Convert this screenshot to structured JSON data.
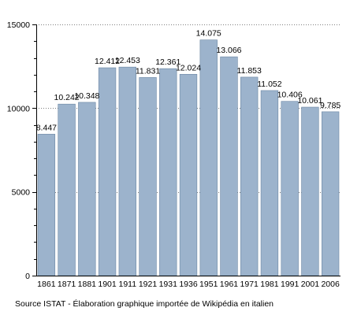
{
  "chart_data": {
    "type": "bar",
    "categories": [
      "1861",
      "1871",
      "1881",
      "1901",
      "1911",
      "1921",
      "1931",
      "1936",
      "1951",
      "1961",
      "1971",
      "1981",
      "1991",
      "2001",
      "2006"
    ],
    "values": [
      8447,
      10242,
      10348,
      12412,
      12453,
      11831,
      12361,
      12024,
      14075,
      13066,
      11853,
      11052,
      10406,
      10061,
      9785
    ],
    "data_labels": [
      "8.447",
      "10.242",
      "10.348",
      "12.412",
      "12.453",
      "11.831",
      "12.361",
      "12.024",
      "14.075",
      "13.066",
      "11.853",
      "11.052",
      "10.406",
      "10.061",
      "9.785"
    ],
    "yticks": [
      0,
      5000,
      10000,
      15000
    ],
    "ytick_labels": [
      "0",
      "5000",
      "10000",
      "15000"
    ],
    "ylim": [
      0,
      15000
    ],
    "grid": true,
    "bar_color": "#9cb3cc",
    "bar_edge_color": "#6b86a3",
    "grid_color": "#000000"
  },
  "footer": {
    "source": "Source ISTAT - Élaboration graphique importée de Wikipédia en italien"
  }
}
